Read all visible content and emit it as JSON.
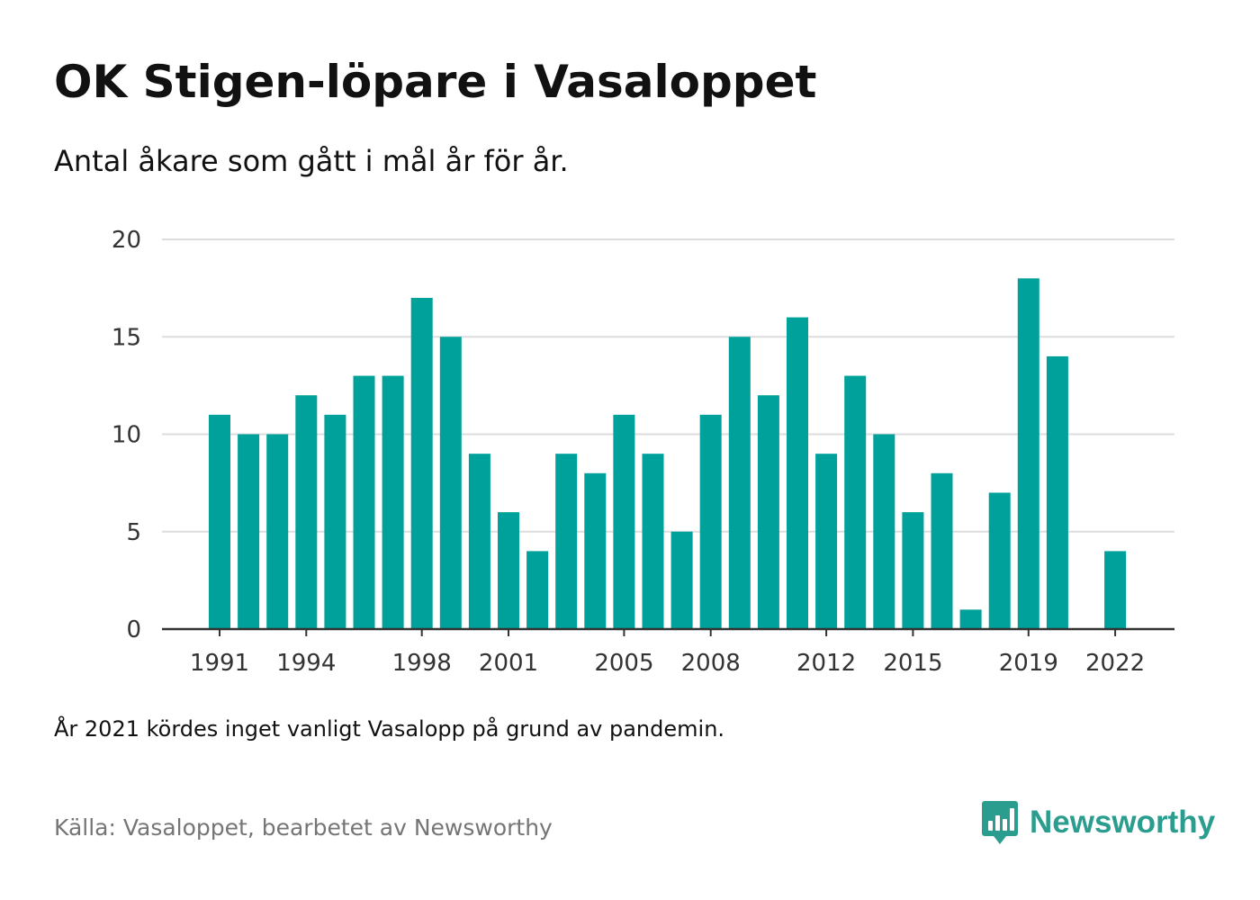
{
  "title": "OK Stigen-löpare i Vasaloppet",
  "subtitle": "Antal åkare som gått i mål år för år.",
  "note": "År 2021 kördes inget vanligt Vasalopp på grund av pandemin.",
  "source": "Källa: Vasaloppet, bearbetet av Newsworthy",
  "brand": {
    "name": "Newsworthy",
    "icon": "newsworthy-logo-icon",
    "color": "#2a9d8f"
  },
  "colors": {
    "bar": "#00a19a",
    "grid": "#dddddd",
    "axis": "#333333"
  },
  "chart_data": {
    "type": "bar",
    "title": "OK Stigen-löpare i Vasaloppet",
    "subtitle": "Antal åkare som gått i mål år för år.",
    "xlabel": "",
    "ylabel": "",
    "x": [
      1991,
      1992,
      1993,
      1994,
      1995,
      1996,
      1997,
      1998,
      1999,
      2000,
      2001,
      2002,
      2003,
      2004,
      2005,
      2006,
      2007,
      2008,
      2009,
      2010,
      2011,
      2012,
      2013,
      2014,
      2015,
      2016,
      2017,
      2018,
      2019,
      2020,
      2021,
      2022
    ],
    "values": [
      11,
      10,
      10,
      12,
      11,
      13,
      13,
      17,
      15,
      9,
      6,
      4,
      9,
      8,
      11,
      9,
      5,
      11,
      15,
      12,
      16,
      9,
      13,
      10,
      6,
      8,
      1,
      7,
      18,
      14,
      null,
      4
    ],
    "x_tick_labels": [
      1991,
      1994,
      1998,
      2001,
      2005,
      2008,
      2012,
      2015,
      2019,
      2022
    ],
    "y_ticks": [
      0,
      5,
      10,
      15,
      20
    ],
    "ylim": [
      0,
      20
    ],
    "grid": true,
    "legend": "none"
  }
}
